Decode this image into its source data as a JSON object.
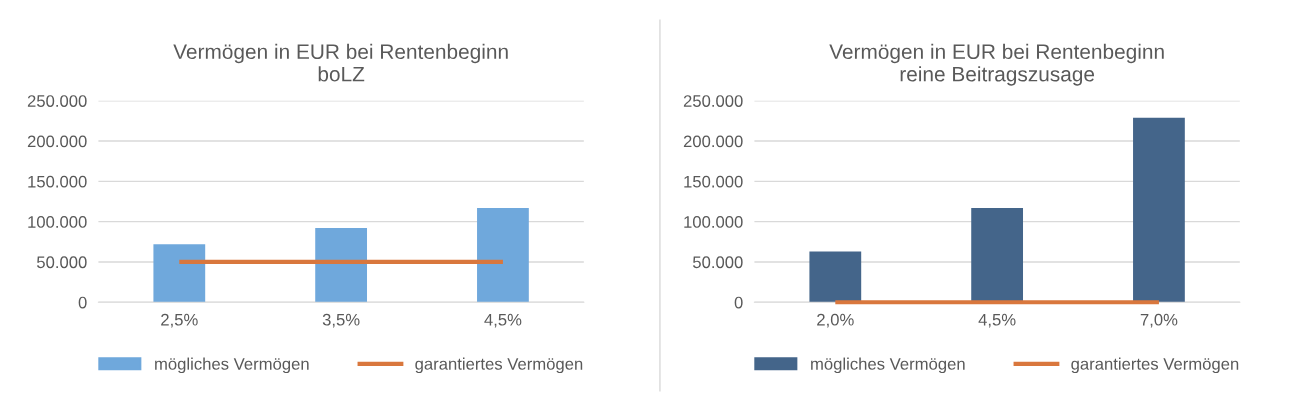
{
  "chart_data": [
    {
      "type": "bar",
      "title": "Vermögen in EUR bei Rentenbeginn\nboLZ",
      "categories": [
        "2,5%",
        "3,5%",
        "4,5%"
      ],
      "series": [
        {
          "name": "mögliches Vermögen",
          "color": "#6fa8dc",
          "values": [
            72000,
            92000,
            117000
          ]
        },
        {
          "name": "garantiertes Vermögen",
          "type": "line",
          "color": "#d9773d",
          "values": [
            50000,
            50000,
            50000
          ]
        }
      ],
      "ylim": [
        0,
        250000
      ],
      "yticks": [
        0,
        {
          "value": 50000,
          "label": "50.000"
        },
        {
          "value": 100000,
          "label": "100.000"
        },
        {
          "value": 150000,
          "label": "150.000"
        },
        {
          "value": 200000,
          "label": "200.000"
        },
        {
          "value": 250000,
          "label": "250.000"
        }
      ],
      "grid": "y",
      "legend": "bottom"
    },
    {
      "type": "bar",
      "title": "Vermögen in EUR bei Rentenbeginn\nreine Beitragszusage",
      "categories": [
        "2,0%",
        "4,5%",
        "7,0%"
      ],
      "series": [
        {
          "name": "mögliches Vermögen",
          "color": "#44658a",
          "values": [
            63000,
            117000,
            229000
          ]
        },
        {
          "name": "garantiertes Vermögen",
          "type": "line",
          "color": "#d9773d",
          "values": [
            0,
            0,
            0
          ]
        }
      ],
      "ylim": [
        0,
        250000
      ],
      "yticks": [
        0,
        {
          "value": 50000,
          "label": "50.000"
        },
        {
          "value": 100000,
          "label": "100.000"
        },
        {
          "value": 150000,
          "label": "150.000"
        },
        {
          "value": 200000,
          "label": "200.000"
        },
        {
          "value": 250000,
          "label": "250.000"
        }
      ],
      "grid": "y",
      "legend": "bottom"
    }
  ]
}
